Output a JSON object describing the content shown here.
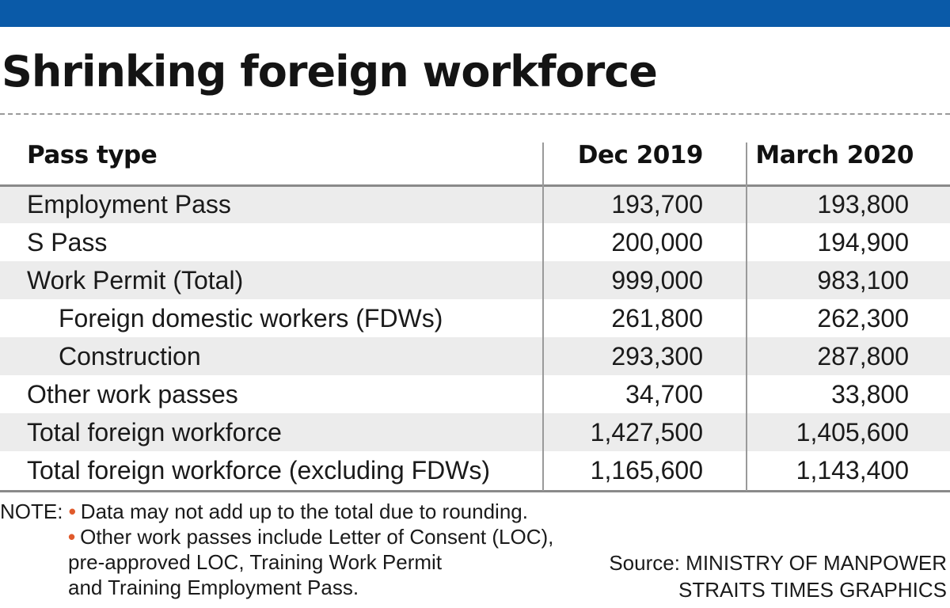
{
  "title": "Shrinking foreign workforce",
  "colors": {
    "top_band": "#0a5aa8",
    "bullet": "#e05a2b",
    "row_shade": "#ececec"
  },
  "chart_data": {
    "type": "table",
    "columns": [
      "Pass type",
      "Dec 2019",
      "March 2020"
    ],
    "rows": [
      {
        "label": "Employment Pass",
        "indent": false,
        "dec_2019": "193,700",
        "march_2020": "193,800"
      },
      {
        "label": "S Pass",
        "indent": false,
        "dec_2019": "200,000",
        "march_2020": "194,900"
      },
      {
        "label": "Work Permit (Total)",
        "indent": false,
        "dec_2019": "999,000",
        "march_2020": "983,100"
      },
      {
        "label": "Foreign domestic workers (FDWs)",
        "indent": true,
        "dec_2019": "261,800",
        "march_2020": "262,300"
      },
      {
        "label": "Construction",
        "indent": true,
        "dec_2019": "293,300",
        "march_2020": "287,800"
      },
      {
        "label": "Other work passes",
        "indent": false,
        "dec_2019": "34,700",
        "march_2020": "33,800"
      },
      {
        "label": "Total foreign workforce",
        "indent": false,
        "dec_2019": "1,427,500",
        "march_2020": "1,405,600"
      },
      {
        "label": "Total foreign workforce (excluding FDWs)",
        "indent": false,
        "dec_2019": "1,165,600",
        "march_2020": "1,143,400"
      }
    ]
  },
  "notes": {
    "prefix": "NOTE:",
    "bullet": "•",
    "items": [
      "Data may not add up to the total due to rounding.",
      "Other work passes include Letter of Consent (LOC),"
    ],
    "continuation": [
      "pre-approved LOC, Training Work Permit",
      "and Training Employment Pass."
    ]
  },
  "source": {
    "line1": "Source: MINISTRY OF MANPOWER",
    "line2": "STRAITS TIMES GRAPHICS"
  }
}
